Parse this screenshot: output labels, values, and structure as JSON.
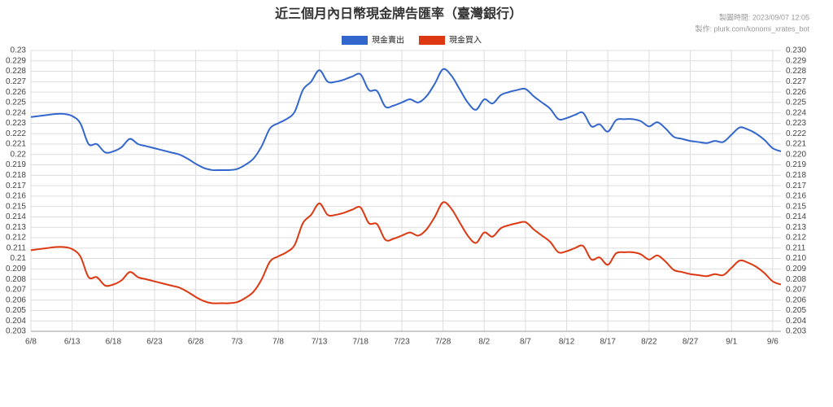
{
  "chart_data": {
    "type": "line",
    "title": "近三個月內日幣現金牌告匯率（臺灣銀行）",
    "annotations": [
      "製圖時間: 2023/09/07 12:05",
      "製作: plurk.com/konomi_xrates_bot"
    ],
    "categories": [
      "6/8",
      null,
      null,
      null,
      null,
      "6/13",
      null,
      null,
      null,
      null,
      "6/18",
      null,
      null,
      null,
      null,
      "6/23",
      null,
      null,
      null,
      null,
      "6/28",
      null,
      null,
      null,
      null,
      "7/3",
      null,
      null,
      null,
      null,
      "7/8",
      null,
      null,
      null,
      null,
      "7/13",
      null,
      null,
      null,
      null,
      "7/18",
      null,
      null,
      null,
      null,
      "7/23",
      null,
      null,
      null,
      null,
      "7/28",
      null,
      null,
      null,
      null,
      "8/2",
      null,
      null,
      null,
      null,
      "8/7",
      null,
      null,
      null,
      null,
      "8/12",
      null,
      null,
      null,
      null,
      "8/17",
      null,
      null,
      null,
      null,
      "8/22",
      null,
      null,
      null,
      null,
      "8/27",
      null,
      null,
      null,
      null,
      "9/1",
      null,
      null,
      null,
      null,
      "9/6",
      null
    ],
    "series": [
      {
        "name": "現金賣出",
        "color": "#3366cc",
        "values": [
          0.2236,
          0.2237,
          0.2238,
          0.2239,
          0.2239,
          0.2237,
          0.223,
          0.221,
          0.221,
          0.2202,
          0.2203,
          0.2207,
          0.2215,
          0.221,
          0.2208,
          0.2206,
          0.2204,
          0.2202,
          0.22,
          0.2196,
          0.2191,
          0.2187,
          0.2185,
          0.2185,
          0.2185,
          0.2186,
          0.219,
          0.2196,
          0.2208,
          0.2225,
          0.223,
          0.2234,
          0.2241,
          0.2262,
          0.227,
          0.2281,
          0.227,
          0.227,
          0.2272,
          0.2275,
          0.2277,
          0.2262,
          0.2261,
          0.2246,
          0.2247,
          0.225,
          0.2253,
          0.225,
          0.2256,
          0.2268,
          0.2282,
          0.2276,
          0.2263,
          0.225,
          0.2243,
          0.2253,
          0.2249,
          0.2257,
          0.226,
          0.2262,
          0.2263,
          0.2256,
          0.225,
          0.2244,
          0.2234,
          0.2235,
          0.2238,
          0.224,
          0.2227,
          0.2229,
          0.2222,
          0.2233,
          0.2234,
          0.2234,
          0.2232,
          0.2227,
          0.2231,
          0.2225,
          0.2217,
          0.2215,
          0.2213,
          0.2212,
          0.2211,
          0.2213,
          0.2212,
          0.2219,
          0.2226,
          0.2224,
          0.222,
          0.2214,
          0.2206,
          0.2203
        ]
      },
      {
        "name": "現金買入",
        "color": "#dc3912",
        "values": [
          0.2108,
          0.2109,
          0.211,
          0.2111,
          0.2111,
          0.2109,
          0.2102,
          0.2082,
          0.2082,
          0.2074,
          0.2075,
          0.2079,
          0.2087,
          0.2082,
          0.208,
          0.2078,
          0.2076,
          0.2074,
          0.2072,
          0.2068,
          0.2063,
          0.2059,
          0.2057,
          0.2057,
          0.2057,
          0.2058,
          0.2062,
          0.2068,
          0.208,
          0.2097,
          0.2102,
          0.2106,
          0.2113,
          0.2134,
          0.2142,
          0.2153,
          0.2142,
          0.2142,
          0.2144,
          0.2147,
          0.2149,
          0.2134,
          0.2133,
          0.2118,
          0.2119,
          0.2122,
          0.2125,
          0.2122,
          0.2128,
          0.214,
          0.2154,
          0.2148,
          0.2135,
          0.2122,
          0.2115,
          0.2125,
          0.2121,
          0.2129,
          0.2132,
          0.2134,
          0.2135,
          0.2128,
          0.2122,
          0.2116,
          0.2106,
          0.2107,
          0.211,
          0.2112,
          0.2099,
          0.2101,
          0.2094,
          0.2105,
          0.2106,
          0.2106,
          0.2104,
          0.2099,
          0.2103,
          0.2097,
          0.2089,
          0.2087,
          0.2085,
          0.2084,
          0.2083,
          0.2085,
          0.2084,
          0.2091,
          0.2098,
          0.2096,
          0.2092,
          0.2086,
          0.2078,
          0.2075
        ]
      }
    ],
    "ylim": [
      0.203,
      0.23
    ],
    "yticks": [
      0.23,
      0.229,
      0.228,
      0.227,
      0.226,
      0.225,
      0.224,
      0.223,
      0.222,
      0.221,
      0.22,
      0.219,
      0.218,
      0.217,
      0.216,
      0.215,
      0.214,
      0.213,
      0.212,
      0.211,
      0.21,
      0.209,
      0.208,
      0.207,
      0.206,
      0.205,
      0.204,
      0.203
    ],
    "y2lim": [
      0.203,
      0.23
    ],
    "y2ticks": [
      {
        "value": 0.23,
        "label": "0.230"
      },
      0.229,
      0.228,
      0.227,
      0.226,
      0.225,
      0.224,
      0.223,
      0.222,
      0.221,
      {
        "value": 0.22,
        "label": "0.220"
      },
      0.219,
      0.218,
      0.217,
      0.216,
      0.215,
      0.214,
      0.213,
      0.212,
      0.211,
      {
        "value": 0.21,
        "label": "0.210"
      },
      0.209,
      0.208,
      0.207,
      0.206,
      0.205,
      0.204,
      0.203
    ],
    "grid": true,
    "legend": "top"
  }
}
